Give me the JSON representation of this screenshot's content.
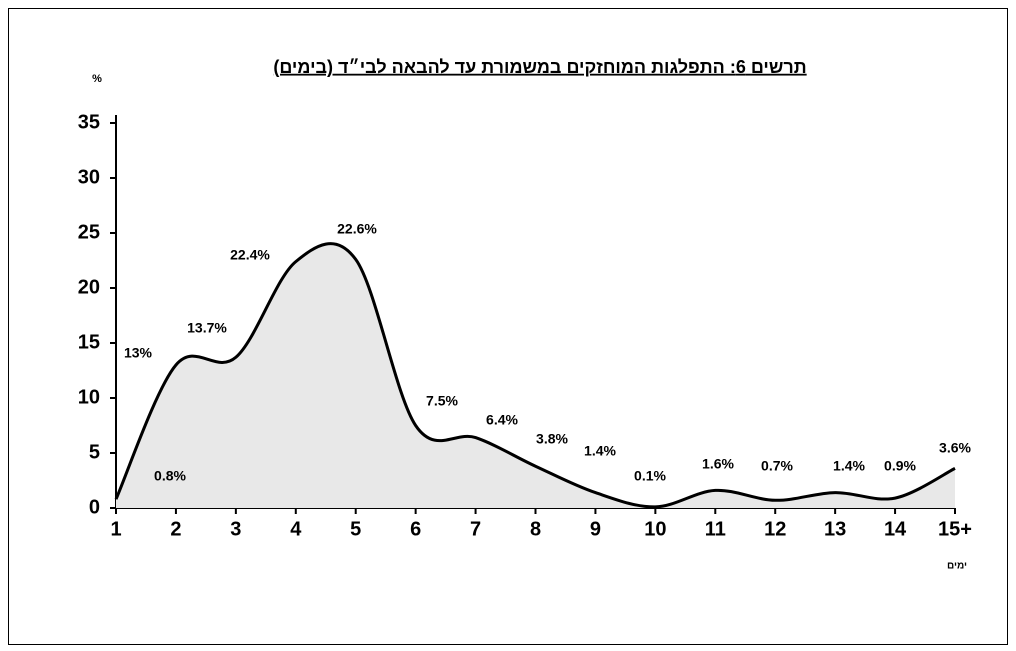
{
  "chart_data": {
    "type": "area",
    "title": "תרשים 6: התפלגות המוחזקים במשמורת עד להבאה לבי״ד (בימים)",
    "y_label": "%",
    "x_label": "ימים",
    "categories": [
      "1",
      "2",
      "3",
      "4",
      "5",
      "6",
      "7",
      "8",
      "9",
      "10",
      "11",
      "12",
      "13",
      "14",
      "15+"
    ],
    "values": [
      0.8,
      13,
      13.7,
      22.4,
      22.6,
      7.5,
      6.4,
      3.8,
      1.4,
      0.1,
      1.6,
      0.7,
      1.4,
      0.9,
      3.6
    ],
    "value_labels": [
      "0.8%",
      "13%",
      "13.7%",
      "22.4%",
      "22.6%",
      "7.5%",
      "6.4%",
      "3.8%",
      "1.4%",
      "0.1%",
      "1.6%",
      "0.7%",
      "1.4%",
      "0.9%",
      "3.6%"
    ],
    "color": "#000000",
    "fill": "#e8e8e8",
    "ylim": [
      0,
      35
    ],
    "yticks": [
      0,
      5,
      10,
      15,
      20,
      25,
      30,
      35
    ]
  }
}
